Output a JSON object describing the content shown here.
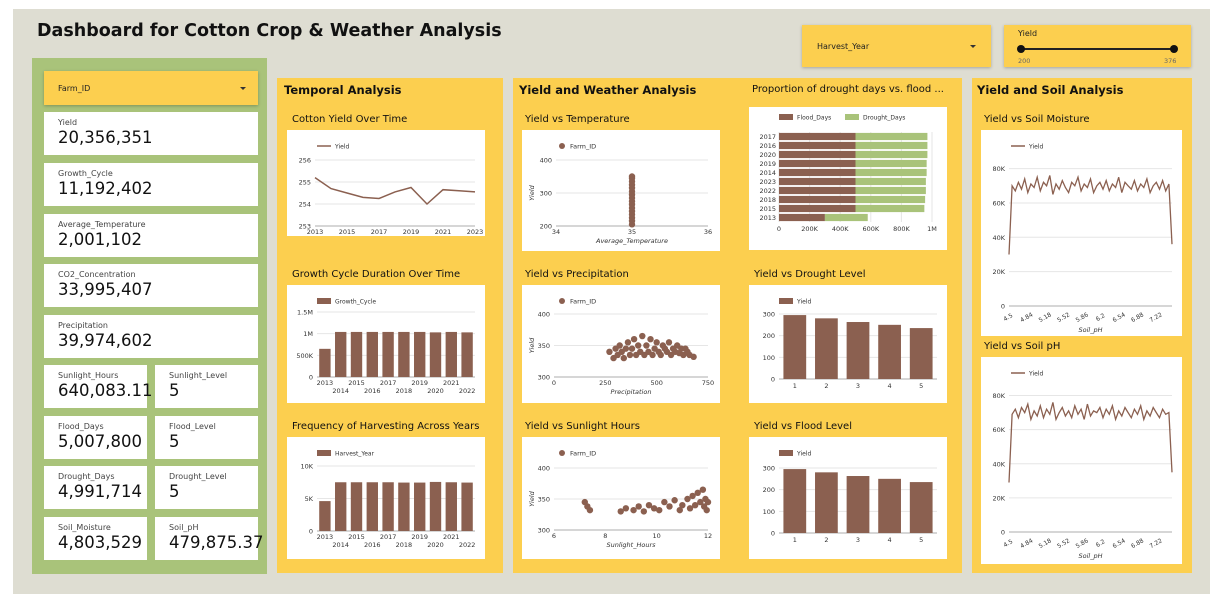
{
  "dashboard": {
    "title": "Dashboard for Cotton Crop & Weather Analysis",
    "colors": {
      "background": "#deddd2",
      "panel": "#fccf4f",
      "kpi_panel": "#a9c37a",
      "series_brown": "#8b6050",
      "series_green": "#a9c37a"
    }
  },
  "filters": {
    "harvest_year": {
      "label": "Harvest_Year",
      "icon": "caret-down-icon"
    },
    "farm_id": {
      "label": "Farm_ID",
      "icon": "caret-down-icon"
    },
    "yield_slider": {
      "label": "Yield",
      "min": "200",
      "max": "376"
    }
  },
  "kpis": [
    {
      "label": "Yield",
      "value": "20,356,351"
    },
    {
      "label": "Growth_Cycle",
      "value": "11,192,402"
    },
    {
      "label": "Average_Temperature",
      "value": "2,001,102"
    },
    {
      "label": "CO2_Concentration",
      "value": "33,995,407"
    },
    {
      "label": "Precipitation",
      "value": "39,974,602"
    },
    {
      "label": "Sunlight_Hours",
      "value": "640,083.11"
    },
    {
      "label": "Sunlight_Level",
      "value": "5"
    },
    {
      "label": "Flood_Days",
      "value": "5,007,800"
    },
    {
      "label": "Flood_Level",
      "value": "5"
    },
    {
      "label": "Drought_Days",
      "value": "4,991,714"
    },
    {
      "label": "Drought_Level",
      "value": "5"
    },
    {
      "label": "Soil_Moisture",
      "value": "4,803,529"
    },
    {
      "label": "Soil_pH",
      "value": "479,875.37"
    }
  ],
  "sections": {
    "temporal": "Temporal Analysis",
    "yield_weather": "Yield and Weather Analysis",
    "drought_flood": "Proportion of drought days vs. flood ...",
    "yield_soil": "Yield and Soil Analysis"
  },
  "chart_data": [
    {
      "id": "cotton_yield_over_time",
      "type": "line",
      "title": "Cotton Yield Over Time",
      "x": [
        2013,
        2014,
        2015,
        2016,
        2017,
        2018,
        2019,
        2020,
        2021,
        2022,
        2023
      ],
      "series": [
        {
          "name": "Yield",
          "values": [
            255.2,
            254.7,
            254.5,
            254.3,
            254.25,
            254.55,
            254.75,
            254.0,
            254.65,
            254.6,
            254.55
          ]
        }
      ],
      "xticks": [
        "2013",
        "2015",
        "2017",
        "2019",
        "2021",
        "2023"
      ],
      "yticks": [
        "253",
        "254",
        "255",
        "256"
      ],
      "ylim": [
        253,
        256
      ],
      "grid": true,
      "legend": "top-left"
    },
    {
      "id": "growth_cycle_over_time",
      "type": "bar",
      "title": "Growth Cycle Duration Over Time",
      "categories": [
        "2013",
        "2014",
        "2015",
        "2016",
        "2017",
        "2018",
        "2019",
        "2020",
        "2021",
        "2022"
      ],
      "series": [
        {
          "name": "Growth_Cycle",
          "values": [
            650000,
            1040000,
            1040000,
            1040000,
            1040000,
            1040000,
            1040000,
            1030000,
            1040000,
            1030000
          ]
        }
      ],
      "yticks": [
        "0",
        "500K",
        "1M",
        "1.5M"
      ],
      "ylim": [
        0,
        1500000
      ],
      "grid": true,
      "legend": "top-left"
    },
    {
      "id": "harvest_frequency",
      "type": "bar",
      "title": "Frequency of Harvesting Across Years",
      "categories": [
        "2013",
        "2014",
        "2015",
        "2016",
        "2017",
        "2018",
        "2019",
        "2020",
        "2021",
        "2022"
      ],
      "series": [
        {
          "name": "Harvest_Year",
          "values": [
            4600,
            7500,
            7500,
            7500,
            7500,
            7450,
            7450,
            7550,
            7500,
            7450
          ]
        }
      ],
      "yticks": [
        "0",
        "5K",
        "10K"
      ],
      "ylim": [
        0,
        10000
      ],
      "grid": true,
      "legend": "top-left"
    },
    {
      "id": "yield_vs_temperature",
      "type": "scatter",
      "title": "Yield vs Temperature",
      "legend_name": "Farm_ID",
      "xlabel": "Average_Temperature",
      "ylabel": "Yield",
      "xlim": [
        34,
        36
      ],
      "ylim": [
        200,
        400
      ],
      "xticks": [
        "34",
        "35",
        "36"
      ],
      "yticks": [
        "200",
        "300",
        "400"
      ],
      "points": [
        [
          35,
          205
        ],
        [
          35,
          215
        ],
        [
          35,
          225
        ],
        [
          35,
          235
        ],
        [
          35,
          245
        ],
        [
          35,
          255
        ],
        [
          35,
          265
        ],
        [
          35,
          275
        ],
        [
          35,
          285
        ],
        [
          35,
          295
        ],
        [
          35,
          305
        ],
        [
          35,
          315
        ],
        [
          35,
          325
        ],
        [
          35,
          335
        ],
        [
          35,
          345
        ],
        [
          35,
          350
        ]
      ]
    },
    {
      "id": "yield_vs_precipitation",
      "type": "scatter",
      "title": "Yield vs Precipitation",
      "legend_name": "Farm_ID",
      "xlabel": "Precipitation",
      "ylabel": "Yield",
      "xlim": [
        0,
        750
      ],
      "ylim": [
        300,
        400
      ],
      "xticks": [
        "0",
        "250",
        "500",
        "750"
      ],
      "yticks": [
        "300",
        "350",
        "400"
      ],
      "points": [
        [
          270,
          340
        ],
        [
          290,
          330
        ],
        [
          300,
          345
        ],
        [
          310,
          335
        ],
        [
          320,
          350
        ],
        [
          330,
          340
        ],
        [
          340,
          330
        ],
        [
          350,
          345
        ],
        [
          360,
          355
        ],
        [
          370,
          335
        ],
        [
          380,
          345
        ],
        [
          390,
          360
        ],
        [
          400,
          335
        ],
        [
          410,
          350
        ],
        [
          420,
          340
        ],
        [
          430,
          365
        ],
        [
          440,
          335
        ],
        [
          450,
          350
        ],
        [
          460,
          340
        ],
        [
          470,
          360
        ],
        [
          480,
          335
        ],
        [
          490,
          345
        ],
        [
          500,
          355
        ],
        [
          510,
          340
        ],
        [
          520,
          335
        ],
        [
          530,
          350
        ],
        [
          540,
          345
        ],
        [
          550,
          340
        ],
        [
          560,
          355
        ],
        [
          570,
          335
        ],
        [
          580,
          345
        ],
        [
          590,
          340
        ],
        [
          600,
          350
        ],
        [
          610,
          338
        ],
        [
          620,
          345
        ],
        [
          630,
          335
        ],
        [
          640,
          345
        ],
        [
          650,
          340
        ],
        [
          660,
          335
        ],
        [
          680,
          332
        ]
      ]
    },
    {
      "id": "yield_vs_sunlight",
      "type": "scatter",
      "title": "Yield vs Sunlight Hours",
      "legend_name": "Farm_ID",
      "xlabel": "Sunlight_Hours",
      "ylabel": "Yield",
      "xlim": [
        6,
        12
      ],
      "ylim": [
        300,
        400
      ],
      "xticks": [
        "6",
        "8",
        "10",
        "12"
      ],
      "yticks": [
        "300",
        "350",
        "400"
      ],
      "points": [
        [
          7.2,
          345
        ],
        [
          7.3,
          338
        ],
        [
          7.4,
          332
        ],
        [
          8.6,
          330
        ],
        [
          8.8,
          335
        ],
        [
          9.1,
          332
        ],
        [
          9.3,
          338
        ],
        [
          9.5,
          330
        ],
        [
          9.7,
          340
        ],
        [
          9.9,
          335
        ],
        [
          10.1,
          332
        ],
        [
          10.3,
          345
        ],
        [
          10.5,
          338
        ],
        [
          10.7,
          348
        ],
        [
          10.9,
          332
        ],
        [
          11.0,
          340
        ],
        [
          11.2,
          350
        ],
        [
          11.3,
          335
        ],
        [
          11.4,
          355
        ],
        [
          11.5,
          340
        ],
        [
          11.6,
          360
        ],
        [
          11.7,
          345
        ],
        [
          11.8,
          365
        ],
        [
          11.85,
          338
        ],
        [
          11.9,
          350
        ],
        [
          11.95,
          332
        ],
        [
          12.0,
          345
        ]
      ]
    },
    {
      "id": "drought_vs_flood",
      "type": "bar",
      "orientation": "horizontal",
      "title": "Proportion of drought days vs. flood ...",
      "categories": [
        "2017",
        "2016",
        "2020",
        "2019",
        "2014",
        "2023",
        "2022",
        "2018",
        "2015",
        "2013"
      ],
      "series": [
        {
          "name": "Flood_Days",
          "values": [
            500000,
            500000,
            500000,
            500000,
            500000,
            500000,
            500000,
            500000,
            500000,
            300000
          ]
        },
        {
          "name": "Drought_Days",
          "values": [
            470000,
            470000,
            470000,
            465000,
            465000,
            460000,
            460000,
            455000,
            450000,
            280000
          ]
        }
      ],
      "xticks": [
        "0",
        "200K",
        "400K",
        "600K",
        "800K",
        "1M"
      ],
      "xlim": [
        0,
        1000000
      ],
      "stacked": true,
      "legend": "top"
    },
    {
      "id": "yield_vs_drought_level",
      "type": "bar",
      "title": "Yield vs Drought Level",
      "categories": [
        "1",
        "2",
        "3",
        "4",
        "5"
      ],
      "series": [
        {
          "name": "Yield",
          "values": [
            295,
            280,
            263,
            250,
            235
          ]
        }
      ],
      "yticks": [
        "0",
        "100",
        "200",
        "300"
      ],
      "ylim": [
        0,
        300
      ],
      "grid": true,
      "legend": "top-left"
    },
    {
      "id": "yield_vs_flood_level",
      "type": "bar",
      "title": "Yield vs Flood Level",
      "categories": [
        "1",
        "2",
        "3",
        "4",
        "5"
      ],
      "series": [
        {
          "name": "Yield",
          "values": [
            295,
            280,
            263,
            250,
            235
          ]
        }
      ],
      "yticks": [
        "0",
        "100",
        "200",
        "300"
      ],
      "ylim": [
        0,
        300
      ],
      "grid": true,
      "legend": "top-left"
    },
    {
      "id": "yield_vs_soil_moisture",
      "type": "line",
      "title": "Yield vs Soil Moisture",
      "xlabel": "Soil_pH",
      "series_name": "Yield",
      "xticks": [
        "4.5",
        "4.84",
        "5.18",
        "5.52",
        "5.86",
        "6.2",
        "6.54",
        "6.88",
        "7.22"
      ],
      "yticks": [
        "0",
        "20K",
        "40K",
        "60K",
        "80K"
      ],
      "ylim": [
        0,
        85000
      ],
      "xlim": [
        4.5,
        7.5
      ],
      "values": [
        30000,
        70000,
        67000,
        72000,
        68000,
        74000,
        66000,
        71000,
        69000,
        75000,
        67000,
        72000,
        70000,
        76000,
        65000,
        71000,
        68000,
        73000,
        69000,
        66000,
        72000,
        70000,
        75000,
        67000,
        71000,
        69000,
        74000,
        66000,
        70000,
        72000,
        68000,
        73000,
        67000,
        71000,
        69000,
        75000,
        66000,
        72000,
        70000,
        68000,
        73000,
        67000,
        71000,
        69000,
        74000,
        66000,
        70000,
        72000,
        68000,
        73000,
        67000,
        71000,
        36000
      ]
    },
    {
      "id": "yield_vs_soil_ph",
      "type": "line",
      "title": "Yield vs Soil pH",
      "xlabel": "Soil_pH",
      "series_name": "Yield",
      "xticks": [
        "4.5",
        "4.84",
        "5.18",
        "5.52",
        "5.86",
        "6.2",
        "6.54",
        "6.88",
        "7.22"
      ],
      "yticks": [
        "0",
        "20K",
        "40K",
        "60K",
        "80K"
      ],
      "ylim": [
        0,
        85000
      ],
      "xlim": [
        4.5,
        7.5
      ],
      "values": [
        29000,
        69000,
        72000,
        67000,
        73000,
        70000,
        75000,
        66000,
        71000,
        68000,
        74000,
        67000,
        72000,
        69000,
        76000,
        66000,
        70000,
        73000,
        68000,
        71000,
        67000,
        74000,
        69000,
        72000,
        66000,
        75000,
        68000,
        71000,
        70000,
        73000,
        67000,
        72000,
        69000,
        74000,
        66000,
        71000,
        68000,
        73000,
        70000,
        67000,
        72000,
        69000,
        74000,
        66000,
        71000,
        68000,
        73000,
        70000,
        67000,
        72000,
        69000,
        70000,
        35000
      ]
    }
  ]
}
